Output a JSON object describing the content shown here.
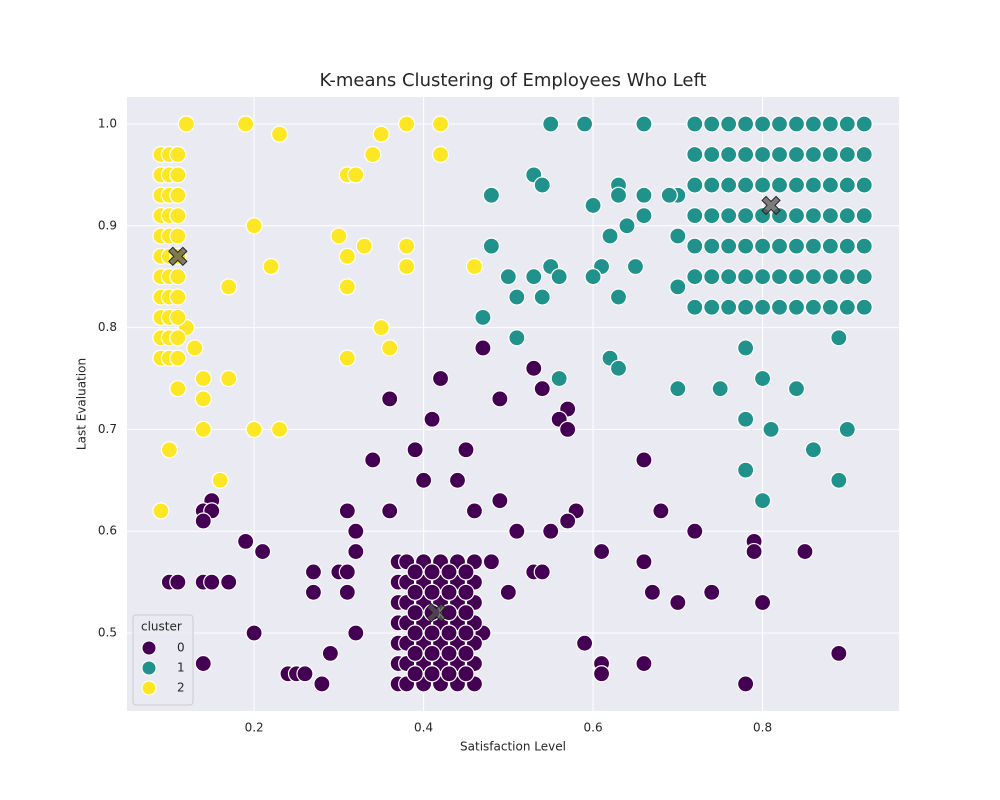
{
  "chart_data": {
    "type": "scatter",
    "title": "K-means Clustering of Employees Who Left",
    "x_label": "Satisfaction Level",
    "y_label": "Last Evaluation",
    "xlim": [
      0.05,
      0.961
    ],
    "ylim": [
      0.4234,
      1.0265
    ],
    "xticks": [
      0.2,
      0.4,
      0.6,
      0.8
    ],
    "yticks": [
      0.5,
      0.6,
      0.7,
      0.8,
      0.9,
      {
        "value": 1.0,
        "label": "1.0"
      }
    ],
    "grid": true,
    "legend_title": "cluster",
    "legend_loc": "lower left",
    "series": [
      {
        "name": "0",
        "color": "#440154",
        "x": [
          0.47,
          0.42,
          0.53,
          0.54,
          0.36,
          0.49,
          0.57,
          0.41,
          0.56,
          0.57,
          0.39,
          0.45,
          0.34,
          0.66,
          0.4,
          0.44,
          0.49,
          0.15,
          0.14,
          0.15,
          0.31,
          0.36,
          0.46,
          0.58,
          0.68,
          0.14,
          0.57,
          0.32,
          0.51,
          0.55,
          0.72,
          0.19,
          0.79,
          0.21,
          0.32,
          0.61,
          0.79,
          0.85,
          0.48,
          0.66,
          0.27,
          0.3,
          0.31,
          0.53,
          0.54,
          0.1,
          0.11,
          0.14,
          0.15,
          0.17,
          0.27,
          0.31,
          0.5,
          0.67,
          0.74,
          0.7,
          0.8,
          0.2,
          0.32,
          0.47,
          0.59,
          0.29,
          0.89,
          0.14,
          0.61,
          0.66,
          0.24,
          0.25,
          0.26,
          0.61,
          0.28,
          0.78,
          0.37,
          0.38,
          0.4,
          0.42,
          0.44,
          0.46,
          0.37,
          0.38,
          0.4,
          0.42,
          0.44,
          0.46,
          0.37,
          0.38,
          0.4,
          0.42,
          0.44,
          0.46,
          0.37,
          0.38,
          0.4,
          0.42,
          0.44,
          0.46,
          0.37,
          0.38,
          0.4,
          0.42,
          0.44,
          0.46,
          0.37,
          0.38,
          0.4,
          0.42,
          0.44,
          0.46,
          0.37,
          0.38,
          0.4,
          0.42,
          0.44,
          0.46,
          0.39,
          0.41,
          0.43,
          0.45,
          0.39,
          0.41,
          0.43,
          0.45,
          0.39,
          0.41,
          0.43,
          0.45,
          0.39,
          0.41,
          0.43,
          0.45,
          0.39,
          0.41,
          0.43,
          0.45,
          0.39,
          0.41,
          0.43,
          0.45
        ],
        "y": [
          0.78,
          0.75,
          0.76,
          0.74,
          0.73,
          0.73,
          0.72,
          0.71,
          0.71,
          0.7,
          0.68,
          0.68,
          0.67,
          0.67,
          0.65,
          0.65,
          0.63,
          0.63,
          0.62,
          0.62,
          0.62,
          0.62,
          0.62,
          0.62,
          0.62,
          0.61,
          0.61,
          0.6,
          0.6,
          0.6,
          0.6,
          0.59,
          0.59,
          0.58,
          0.58,
          0.58,
          0.58,
          0.58,
          0.57,
          0.57,
          0.56,
          0.56,
          0.56,
          0.56,
          0.56,
          0.55,
          0.55,
          0.55,
          0.55,
          0.55,
          0.54,
          0.54,
          0.54,
          0.54,
          0.54,
          0.53,
          0.53,
          0.5,
          0.5,
          0.5,
          0.49,
          0.48,
          0.48,
          0.47,
          0.47,
          0.47,
          0.46,
          0.46,
          0.46,
          0.46,
          0.45,
          0.45,
          0.45,
          0.45,
          0.45,
          0.45,
          0.45,
          0.45,
          0.47,
          0.47,
          0.47,
          0.47,
          0.47,
          0.47,
          0.49,
          0.49,
          0.49,
          0.49,
          0.49,
          0.49,
          0.51,
          0.51,
          0.51,
          0.51,
          0.51,
          0.51,
          0.53,
          0.53,
          0.53,
          0.53,
          0.53,
          0.53,
          0.55,
          0.55,
          0.55,
          0.55,
          0.55,
          0.55,
          0.57,
          0.57,
          0.57,
          0.57,
          0.57,
          0.57,
          0.46,
          0.46,
          0.46,
          0.46,
          0.48,
          0.48,
          0.48,
          0.48,
          0.5,
          0.5,
          0.5,
          0.5,
          0.52,
          0.52,
          0.52,
          0.52,
          0.54,
          0.54,
          0.54,
          0.54,
          0.56,
          0.56,
          0.56,
          0.56
        ]
      },
      {
        "name": "1",
        "color": "#21918c",
        "x": [
          0.55,
          0.59,
          0.66,
          0.53,
          0.54,
          0.48,
          0.63,
          0.63,
          0.66,
          0.6,
          0.66,
          0.64,
          0.62,
          0.7,
          0.48,
          0.55,
          0.56,
          0.61,
          0.65,
          0.5,
          0.53,
          0.6,
          0.51,
          0.54,
          0.63,
          0.7,
          0.47,
          0.51,
          0.62,
          0.63,
          0.56,
          0.7,
          0.75,
          0.78,
          0.8,
          0.84,
          0.78,
          0.81,
          0.9,
          0.86,
          0.78,
          0.89,
          0.8,
          0.89,
          0.7,
          0.69,
          0.72,
          0.74,
          0.76,
          0.78,
          0.8,
          0.82,
          0.84,
          0.86,
          0.88,
          0.9,
          0.92,
          0.72,
          0.74,
          0.76,
          0.78,
          0.8,
          0.82,
          0.84,
          0.86,
          0.88,
          0.9,
          0.92,
          0.72,
          0.74,
          0.76,
          0.78,
          0.8,
          0.82,
          0.84,
          0.86,
          0.88,
          0.9,
          0.92,
          0.72,
          0.74,
          0.76,
          0.78,
          0.8,
          0.82,
          0.84,
          0.86,
          0.88,
          0.9,
          0.92,
          0.72,
          0.74,
          0.76,
          0.78,
          0.8,
          0.82,
          0.84,
          0.86,
          0.88,
          0.9,
          0.92,
          0.72,
          0.74,
          0.76,
          0.78,
          0.8,
          0.82,
          0.84,
          0.86,
          0.88,
          0.9,
          0.92,
          0.72,
          0.74,
          0.76,
          0.78,
          0.8,
          0.82,
          0.84,
          0.86,
          0.88,
          0.9,
          0.92
        ],
        "y": [
          1.0,
          1.0,
          1.0,
          0.95,
          0.94,
          0.93,
          0.94,
          0.93,
          0.93,
          0.92,
          0.91,
          0.9,
          0.89,
          0.89,
          0.88,
          0.86,
          0.85,
          0.86,
          0.86,
          0.85,
          0.85,
          0.85,
          0.83,
          0.83,
          0.83,
          0.84,
          0.81,
          0.79,
          0.77,
          0.76,
          0.75,
          0.74,
          0.74,
          0.78,
          0.75,
          0.74,
          0.71,
          0.7,
          0.7,
          0.68,
          0.66,
          0.65,
          0.63,
          0.79,
          0.93,
          0.93,
          0.82,
          0.82,
          0.82,
          0.82,
          0.82,
          0.82,
          0.82,
          0.82,
          0.82,
          0.82,
          0.82,
          0.85,
          0.85,
          0.85,
          0.85,
          0.85,
          0.85,
          0.85,
          0.85,
          0.85,
          0.85,
          0.85,
          0.88,
          0.88,
          0.88,
          0.88,
          0.88,
          0.88,
          0.88,
          0.88,
          0.88,
          0.88,
          0.88,
          0.91,
          0.91,
          0.91,
          0.91,
          0.91,
          0.91,
          0.91,
          0.91,
          0.91,
          0.91,
          0.91,
          0.94,
          0.94,
          0.94,
          0.94,
          0.94,
          0.94,
          0.94,
          0.94,
          0.94,
          0.94,
          0.94,
          0.97,
          0.97,
          0.97,
          0.97,
          0.97,
          0.97,
          0.97,
          0.97,
          0.97,
          0.97,
          0.97,
          1.0,
          1.0,
          1.0,
          1.0,
          1.0,
          1.0,
          1.0,
          1.0,
          1.0,
          1.0,
          1.0
        ]
      },
      {
        "name": "2",
        "color": "#fde725",
        "x": [
          0.12,
          0.19,
          0.23,
          0.2,
          0.22,
          0.17,
          0.13,
          0.12,
          0.11,
          0.14,
          0.17,
          0.14,
          0.14,
          0.2,
          0.23,
          0.1,
          0.16,
          0.09,
          0.31,
          0.32,
          0.34,
          0.35,
          0.38,
          0.42,
          0.42,
          0.3,
          0.33,
          0.31,
          0.38,
          0.38,
          0.46,
          0.31,
          0.35,
          0.36,
          0.31,
          0.09,
          0.1,
          0.11,
          0.09,
          0.1,
          0.11,
          0.09,
          0.1,
          0.11,
          0.09,
          0.1,
          0.11,
          0.09,
          0.1,
          0.11,
          0.09,
          0.1,
          0.11,
          0.09,
          0.1,
          0.11,
          0.09,
          0.1,
          0.11,
          0.09,
          0.1,
          0.11,
          0.09,
          0.1,
          0.11,
          0.09,
          0.1,
          0.11
        ],
        "y": [
          1.0,
          1.0,
          0.99,
          0.9,
          0.86,
          0.84,
          0.78,
          0.8,
          0.74,
          0.75,
          0.75,
          0.73,
          0.7,
          0.7,
          0.7,
          0.68,
          0.65,
          0.62,
          0.95,
          0.95,
          0.97,
          0.99,
          1.0,
          1.0,
          0.97,
          0.89,
          0.88,
          0.87,
          0.88,
          0.86,
          0.86,
          0.84,
          0.8,
          0.78,
          0.77,
          0.77,
          0.77,
          0.77,
          0.79,
          0.79,
          0.79,
          0.81,
          0.81,
          0.81,
          0.83,
          0.83,
          0.83,
          0.85,
          0.85,
          0.85,
          0.87,
          0.87,
          0.87,
          0.89,
          0.89,
          0.89,
          0.91,
          0.91,
          0.91,
          0.93,
          0.93,
          0.93,
          0.95,
          0.95,
          0.95,
          0.97,
          0.97,
          0.97
        ]
      }
    ],
    "centroids": {
      "color": "#555555",
      "x": [
        0.415,
        0.81,
        0.11
      ],
      "y": [
        0.52,
        0.92,
        0.87
      ]
    }
  }
}
